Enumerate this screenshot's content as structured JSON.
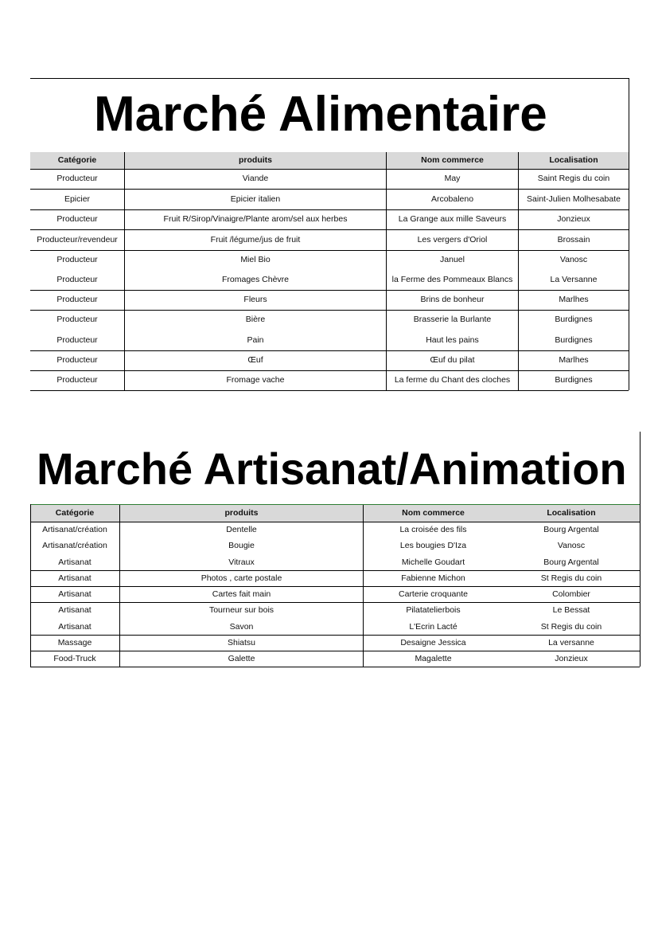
{
  "alimentaire": {
    "title": "Marché Alimentaire",
    "headers": [
      "Catégorie",
      "produits",
      "Nom commerce",
      "Localisation"
    ],
    "groups": [
      [
        [
          "Producteur",
          "Viande",
          "May",
          "Saint Regis du coin"
        ]
      ],
      [
        [
          "Epicier",
          "Epicier italien",
          "Arcobaleno",
          "Saint-Julien Molhesabate"
        ]
      ],
      [
        [
          "Producteur",
          "Fruit R/Sirop/Vinaigre/Plante arom/sel aux herbes",
          "La Grange aux mille Saveurs",
          "Jonzieux"
        ]
      ],
      [
        [
          "Producteur/revendeur",
          "Fruit /légume/jus de fruit",
          "Les vergers d'Oriol",
          "Brossain"
        ]
      ],
      [
        [
          "Producteur",
          "Miel Bio",
          "Januel",
          "Vanosc"
        ],
        [
          "Producteur",
          "Fromages Chèvre",
          "la Ferme des Pommeaux Blancs",
          "La Versanne"
        ]
      ],
      [
        [
          "Producteur",
          "Fleurs",
          "Brins de bonheur",
          "Marlhes"
        ]
      ],
      [
        [
          "Producteur",
          "Bière",
          "Brasserie la Burlante",
          "Burdignes"
        ],
        [
          "Producteur",
          "Pain",
          "Haut les pains",
          "Burdignes"
        ]
      ],
      [
        [
          "Producteur",
          "Œuf",
          "Œuf du pilat",
          "Marlhes"
        ]
      ],
      [
        [
          "Producteur",
          "Fromage vache",
          "La ferme du Chant des cloches",
          "Burdignes"
        ]
      ]
    ]
  },
  "artisanat": {
    "title": "Marché Artisanat/Animation",
    "headers": [
      "Catégorie",
      "produits",
      "Nom commerce",
      "Localisation"
    ],
    "groups": [
      [
        [
          "Artisanat/création",
          "Dentelle",
          "La croisée des fils",
          "Bourg Argental"
        ],
        [
          "Artisanat/création",
          "Bougie",
          "Les bougies D'Iza",
          "Vanosc"
        ],
        [
          "Artisanat",
          "Vitraux",
          "Michelle Goudart",
          "Bourg Argental"
        ]
      ],
      [
        [
          "Artisanat",
          "Photos , carte postale",
          "Fabienne Michon",
          "St Regis du coin"
        ]
      ],
      [
        [
          "Artisanat",
          "Cartes fait main",
          "Carterie croquante",
          "Colombier"
        ]
      ],
      [
        [
          "Artisanat",
          "Tourneur sur bois",
          "Pilatatelierbois",
          "Le Bessat"
        ],
        [
          "Artisanat",
          "Savon",
          "L'Ecrin Lacté",
          "St Regis du coin"
        ]
      ],
      [
        [
          "Massage",
          "Shiatsu",
          "Desaigne Jessica",
          "La versanne"
        ]
      ],
      [
        [
          "Food-Truck",
          "Galette",
          "Magalette",
          "Jonzieux"
        ]
      ]
    ]
  }
}
